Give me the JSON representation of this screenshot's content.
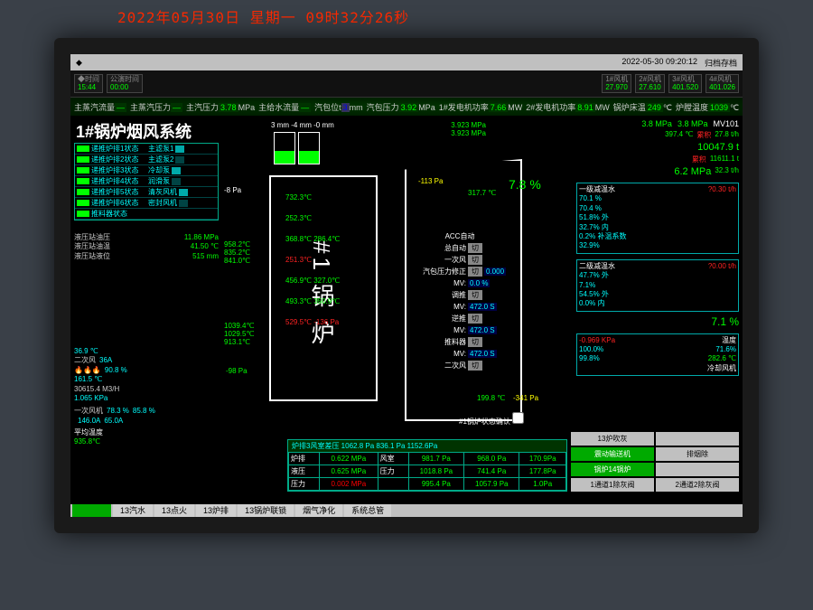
{
  "led_banner": "2022年05月30日  星期一  09时32分26秒",
  "topbar": {
    "date": "2022-05-30 09:20:12",
    "mode": "归档存档"
  },
  "infobar": {
    "blocks": [
      {
        "k": "◆时间",
        "v": "15:44"
      },
      {
        "k": "公演时间",
        "v": "00:00"
      }
    ],
    "right": [
      {
        "k": "1#风机",
        "v": "27.970"
      },
      {
        "k": "2#风机",
        "v": "27.610"
      },
      {
        "k": "3#风机",
        "v": "401.520"
      },
      {
        "k": "4#风机",
        "v": "401.026"
      }
    ]
  },
  "topreadings": [
    {
      "lbl": "主蒸汽流量",
      "val": "—",
      "cls": "val"
    },
    {
      "lbl": "主蒸汽压力",
      "val": "—",
      "cls": "val"
    },
    {
      "lbl": "主汽压力",
      "val": "3.78",
      "unit": "MPa",
      "cls": "val"
    },
    {
      "lbl": "主给水流量",
      "val": "—",
      "cls": "val"
    },
    {
      "lbl": "汽包位t",
      "val": "3",
      "unit": "mm",
      "cls": "valB"
    },
    {
      "lbl": "汽包压力",
      "val": "3.92",
      "unit": "MPa",
      "cls": "val"
    },
    {
      "lbl": "1#发电机功率",
      "val": "7.66",
      "unit": "MW",
      "cls": "val"
    },
    {
      "lbl": "2#发电机功率",
      "val": "8.91",
      "unit": "MW",
      "cls": "val"
    },
    {
      "lbl": "锅炉床温",
      "val": "249",
      "unit": "℃",
      "cls": "val"
    },
    {
      "lbl": "炉膛温度",
      "val": "1039",
      "unit": "℃",
      "cls": "val"
    }
  ],
  "title": "1#锅炉烟风系统",
  "status_left": [
    "递推炉排1状态",
    "递推炉排2状态",
    "递推炉排3状态",
    "递推炉排4状态",
    "递推炉排5状态",
    "递推炉排6状态",
    "推料器状态"
  ],
  "status_right": [
    "主滤泵1",
    "主滤泵2",
    "冷却泵",
    "润滑泵",
    "清灰风机",
    "密封风机"
  ],
  "sub_hydraulic": [
    {
      "k": "液压站油压",
      "v": "11.86",
      "u": "MPa"
    },
    {
      "k": "液压站油温",
      "v": "41.50",
      "u": "℃"
    },
    {
      "k": "液压站液位",
      "v": "515",
      "u": "mm"
    }
  ],
  "sub_flags": [
    "加锁",
    "破桥",
    "解锁",
    "破桥缸原位",
    "破桥动作"
  ],
  "tank_header": "3 mm  -4 mm  -0 mm",
  "tank_top_pressures": [
    "3.923 MPa",
    "3.923 MPa"
  ],
  "furnace_temps_left": [
    "958.2℃",
    "835.2℃",
    "841.0℃",
    "1039.4℃",
    "1029.5℃",
    "913.1℃"
  ],
  "furnace_temps_mid": [
    "732.3℃",
    "252.3℃",
    "368.8℃ 286.4℃",
    "251.3℃",
    "456.9℃ 327.0℃",
    "493.3℃ 350.9℃",
    "529.5℃ -136 Pa"
  ],
  "furnace_pa": "-8 Pa",
  "furnace_negPa": "-98 Pa",
  "avg_temp_title": "平均温度",
  "avg_temp": "935.8℃",
  "midbox_top": [
    "-113 Pa",
    "317.7 ℃"
  ],
  "pct_main": "7.8 %",
  "acc": {
    "title": "ACC自动",
    "rows": [
      {
        "lbl": "总自动",
        "btn": "切"
      },
      {
        "lbl": "一次风",
        "btn": "切"
      },
      {
        "lbl": "汽包压力修正",
        "btn": "切",
        "val": "0.000"
      },
      {
        "lbl": "MV:",
        "btn": "",
        "val": "0.0 %"
      },
      {
        "lbl": "调推",
        "btn": "切"
      },
      {
        "lbl": "MV:",
        "btn": "",
        "val": "472.0 S"
      },
      {
        "lbl": "逆推",
        "btn": "切"
      },
      {
        "lbl": "MV:",
        "btn": "",
        "val": "472.0 S"
      },
      {
        "lbl": "推料器",
        "btn": "切"
      },
      {
        "lbl": "MV:",
        "btn": "",
        "val": "472.0 S"
      },
      {
        "lbl": "二次风",
        "btn": "切"
      }
    ]
  },
  "midbox_bottom": {
    "t": "199.8 ℃",
    "p": "-341 Pa"
  },
  "confirm_btn": "#1锅炉状态确认",
  "right": {
    "top": [
      {
        "lbl": "",
        "v": "3.8 MPa"
      },
      {
        "lbl": "",
        "v": "3.8 MPa"
      },
      {
        "lbl": "MV101",
        "v": ""
      }
    ],
    "temp": "397.4 ℃",
    "sum_label": "累积",
    "sum1": "10047.9 t",
    "rate1": "27.8 t/h",
    "sum2": "11611.1 t",
    "rate2": "32.3 t/h",
    "p2": "6.2 MPa",
    "seg1": {
      "lbl": "一级减温水",
      "set": "?0.30 t/h",
      "vals": [
        "70.1 %",
        "70.4 %",
        "51.8% 外",
        "32.7% 内",
        "0.2% 补温系数",
        "32.9%"
      ]
    },
    "seg2": {
      "lbl": "二级减温水",
      "set": "?0.00 t/h",
      "vals": [
        "47.7% 外",
        "7.1%",
        "54.5% 外",
        "0.0% 内"
      ]
    },
    "side_pct": "7.1 %",
    "low": {
      "p": "-0.969 KPa",
      "lbl": "温度",
      "t": "冷却风机",
      "pcts": [
        [
          "100.0%",
          "99.8%"
        ],
        [
          "71.6%",
          "282.6 ℃"
        ]
      ]
    }
  },
  "fans": {
    "temp": "36.9 ℃",
    "amp": "36A",
    "pct1": "90.8 %",
    "t2": "161.5 ℃",
    "flow": "30615.4 M3/H",
    "kpa": "1.065 KPa",
    "sets": [
      [
        "78.3 %",
        "146.0A"
      ],
      [
        "85.8 %",
        "65.0A"
      ]
    ]
  },
  "btable": {
    "title": "炉排3风室差压    1062.8 Pa    836.1 Pa    1152.6Pa",
    "rows": [
      [
        "炉排",
        "0.622 MPa",
        "风室",
        "981.7 Pa",
        "968.0 Pa",
        "170.9Pa"
      ],
      [
        "液压",
        "0.625 MPa",
        "压力",
        "1018.8 Pa",
        "741.4 Pa",
        "177.8Pa"
      ],
      [
        "压力",
        "0.002 MPa",
        "",
        "995.4 Pa",
        "1057.9 Pa",
        "1.0Pa"
      ]
    ],
    "col2_red": 2
  },
  "btns": [
    "13炉吹灰",
    "",
    "震动输送机",
    "排烟除",
    "锅炉14锅炉",
    "",
    "1通道1除灰阀",
    "2通道2除灰阀"
  ],
  "tabs": [
    "13汽水",
    "13点火",
    "13炉排",
    "13锅炉联锁",
    "烟气净化",
    "系统总管"
  ]
}
